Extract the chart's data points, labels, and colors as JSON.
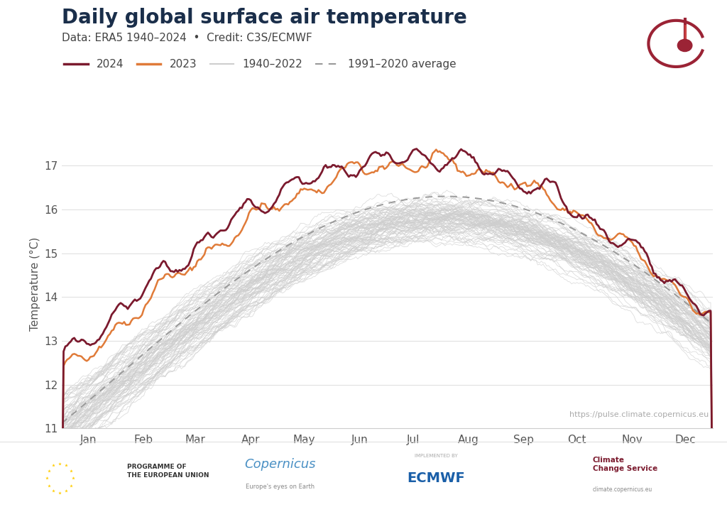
{
  "title": "Daily global surface air temperature",
  "subtitle": "Data: ERA5 1940–2024  •  Credit: C3S/ECMWF",
  "ylabel": "Temperature (°C)",
  "url": "https://pulse.climate.copernicus.eu",
  "ylim": [
    11,
    17.6
  ],
  "yticks": [
    11,
    12,
    13,
    14,
    15,
    16,
    17
  ],
  "months": [
    "Jan",
    "Feb",
    "Mar",
    "Apr",
    "May",
    "Jun",
    "Jul",
    "Aug",
    "Sep",
    "Oct",
    "Nov",
    "Dec"
  ],
  "month_centers": [
    15,
    46,
    75,
    106,
    136,
    167,
    197,
    228,
    259,
    289,
    320,
    350
  ],
  "color_2024": "#7b1a2e",
  "color_2023": "#e07b39",
  "color_historical": "#cecece",
  "color_average": "#999999",
  "bg_color": "#ffffff",
  "legend_labels": [
    "2024",
    "2023",
    "1940–2022",
    "1991–2020 average"
  ],
  "title_color": "#1a2e4a",
  "subtitle_color": "#444444",
  "title_fontsize": 20,
  "subtitle_fontsize": 11,
  "axis_label_fontsize": 11,
  "tick_fontsize": 11,
  "legend_fontsize": 11
}
